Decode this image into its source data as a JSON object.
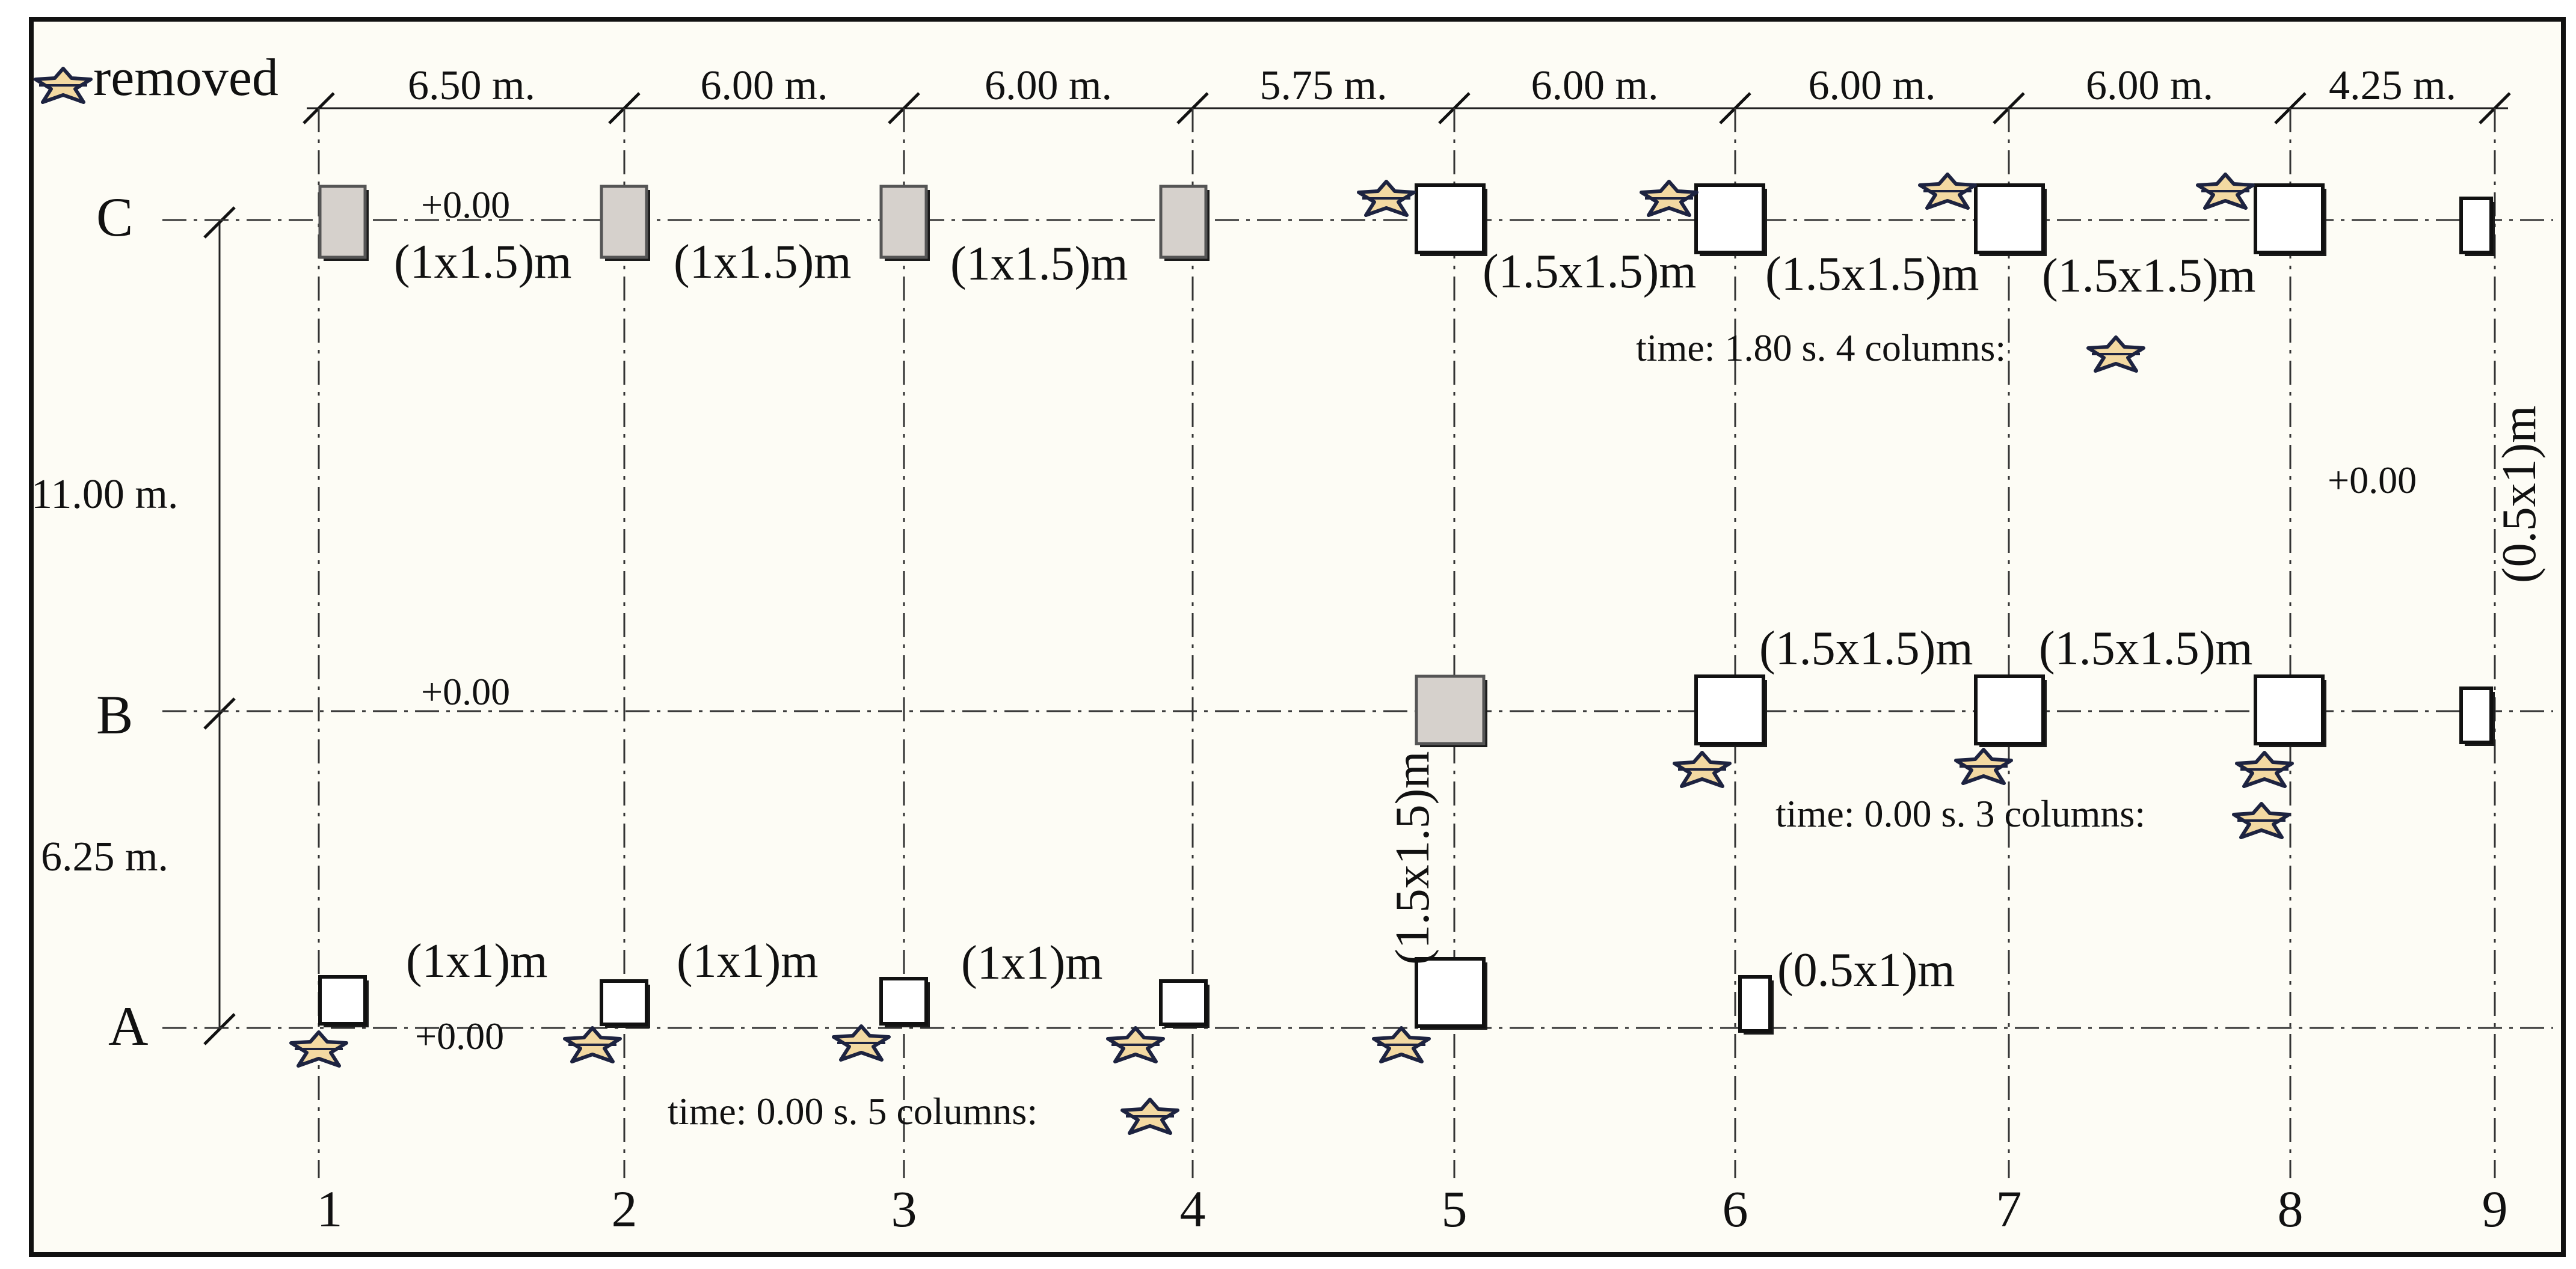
{
  "legend": {
    "label": "removed",
    "icon": "removed-marker-icon"
  },
  "grid": {
    "axes": [
      "1",
      "2",
      "3",
      "4",
      "5",
      "6",
      "7",
      "8",
      "9"
    ],
    "rows": [
      "C",
      "B",
      "A"
    ]
  },
  "spans": {
    "horizontal": [
      "6.50 m.",
      "6.00 m.",
      "6.00 m.",
      "5.75 m.",
      "6.00 m.",
      "6.00 m.",
      "6.00 m.",
      "4.25 m."
    ],
    "vertical": [
      "11.00 m.",
      "6.25 m."
    ]
  },
  "elevations": [
    "+0.00",
    "+0.00",
    "+0.00",
    "+0.00"
  ],
  "size_labels": {
    "row_c": [
      "(1x1.5)m",
      "(1x1.5)m",
      "(1x1.5)m",
      "(1.5x1.5)m",
      "(1.5x1.5)m",
      "(1.5x1.5)m"
    ],
    "row_b": [
      "(1.5x1.5)m",
      "(1.5x1.5)m"
    ],
    "row_a": [
      "(1x1)m",
      "(1x1)m",
      "(1x1)m",
      "(0.5x1)m"
    ],
    "vertical_axis_5": "(1.5x1.5)m",
    "vertical_axis_9": "(0.5x1)m"
  },
  "stage_notes": [
    "time: 1.80 s. 4 columns:",
    "time: 0.00 s. 3 columns:",
    "time: 0.00 s. 5 columns:"
  ],
  "colors": {
    "background": "#fdfcf5",
    "removed_marker": "#f3d9a2",
    "removed_outline": "#1d2340",
    "removed_column": "#d6d1cc"
  }
}
